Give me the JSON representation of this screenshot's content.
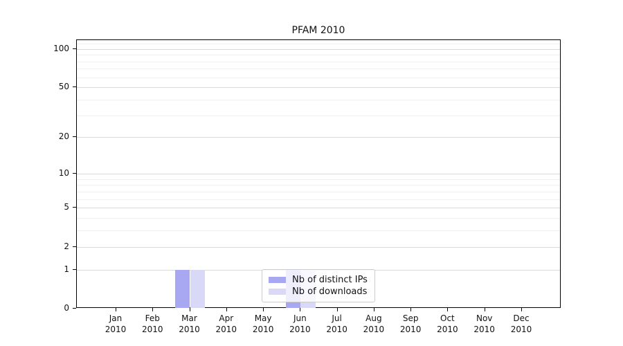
{
  "chart_data": {
    "type": "bar",
    "title": "PFAM 2010",
    "categories": [
      "Jan",
      "Feb",
      "Mar",
      "Apr",
      "May",
      "Jun",
      "Jul",
      "Aug",
      "Sep",
      "Oct",
      "Nov",
      "Dec"
    ],
    "year_label": "2010",
    "series": [
      {
        "name": "Nb of distinct IPs",
        "color": "#a8a8f2",
        "values": [
          0,
          0,
          1,
          0,
          0,
          1,
          0,
          0,
          0,
          0,
          0,
          0
        ]
      },
      {
        "name": "Nb of downloads",
        "color": "#d9d9f7",
        "values": [
          0,
          0,
          1,
          0,
          0,
          1,
          0,
          0,
          0,
          0,
          0,
          0
        ]
      }
    ],
    "xlabel": "",
    "ylabel": "",
    "yscale": "log1p",
    "ylim": [
      0,
      117
    ],
    "yticks": [
      0,
      1,
      2,
      5,
      10,
      20,
      50,
      100
    ],
    "yticks_minor": [
      3,
      4,
      6,
      7,
      8,
      9,
      30,
      40,
      60,
      70,
      80,
      90,
      110
    ],
    "grid": true,
    "legend_position": "lower center inside",
    "colors": {
      "text": "#111111",
      "spine": "#000000",
      "grid_major": "#d9d9d9",
      "grid_minor": "#efefef",
      "legend_border": "#cccccc",
      "legend_background": "rgba(255,255,255,0.8)"
    }
  }
}
